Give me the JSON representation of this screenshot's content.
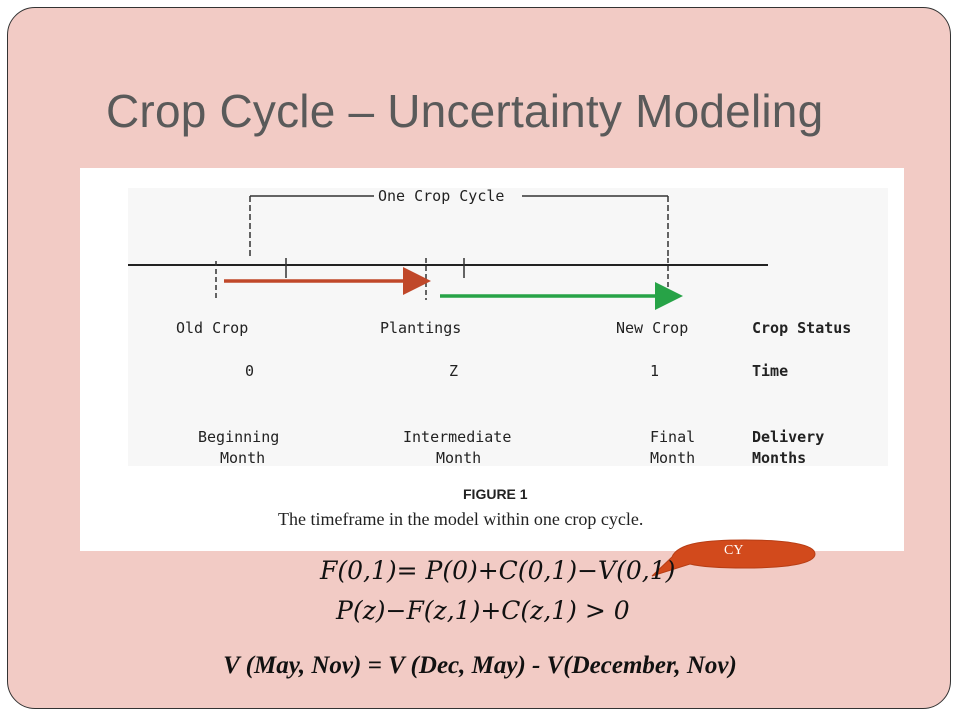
{
  "slide": {
    "title": "Crop Cycle – Uncertainty Modeling"
  },
  "figure": {
    "cycle_label": "One Crop Cycle",
    "crop_status": {
      "old": "Old Crop",
      "plantings": "Plantings",
      "new": "New Crop",
      "heading": "Crop Status"
    },
    "time": {
      "t0": "0",
      "tz": "Z",
      "t1": "1",
      "heading": "Time"
    },
    "delivery": {
      "beginning_line1": "Beginning",
      "beginning_line2": "Month",
      "intermediate_line1": "Intermediate",
      "intermediate_line2": "Month",
      "final_line1": "Final",
      "final_line2": "Month",
      "heading_line1": "Delivery",
      "heading_line2": "Months"
    },
    "caption_title": "FIGURE 1",
    "caption_text": "The timeframe in the model within one crop cycle.",
    "colors": {
      "arrow1": "#c0482a",
      "arrow2": "#27a347"
    }
  },
  "equations": {
    "eq1": "F(0,1)= P(0)+C(0,1)−V(0,1)",
    "eq2": "P(z)−F(z,1)+C(z,1) > 0"
  },
  "callout": {
    "label": "CY",
    "color": "#d24a1c"
  },
  "bottom_text": "V (May, Nov) = V (Dec, May) - V(December, Nov)"
}
